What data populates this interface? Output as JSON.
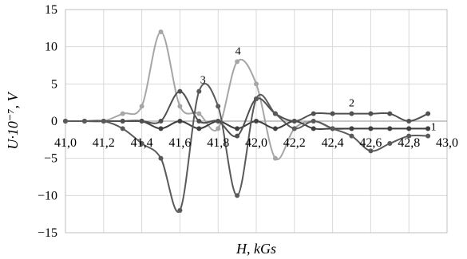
{
  "chart_data": {
    "type": "line",
    "title": "",
    "xlabel": "H, kGs",
    "ylabel": "U·10⁻⁷, V",
    "xlim": [
      41.0,
      43.0
    ],
    "ylim": [
      -15,
      15
    ],
    "x_ticks": [
      41.0,
      41.2,
      41.4,
      41.6,
      41.8,
      42.0,
      42.2,
      42.4,
      42.6,
      42.8,
      43.0
    ],
    "x_tick_labels": [
      "41,0",
      "41,2",
      "41,4",
      "41,6",
      "41,8",
      "42,0",
      "42,2",
      "42,4",
      "42,6",
      "42,8",
      "43,0"
    ],
    "y_ticks": [
      -15,
      -10,
      -5,
      0,
      5,
      10,
      15
    ],
    "y_tick_labels": [
      "−15",
      "−10",
      "−5",
      "0",
      "5",
      "10",
      "15"
    ],
    "grid": true,
    "legend": "none",
    "series": [
      {
        "name": "1",
        "color": "#404040",
        "x": [
          41.0,
          41.1,
          41.2,
          41.3,
          41.4,
          41.5,
          41.6,
          41.7,
          41.8,
          41.9,
          42.0,
          42.1,
          42.2,
          42.3,
          42.4,
          42.5,
          42.6,
          42.7,
          42.8,
          42.9
        ],
        "y": [
          0,
          0,
          0,
          0,
          0,
          -1,
          0,
          -1,
          0,
          -1,
          0,
          -1,
          0,
          -1,
          -1,
          -1,
          -1,
          -1,
          -1,
          -1
        ]
      },
      {
        "name": "2",
        "color": "#505050",
        "x": [
          41.0,
          41.1,
          41.2,
          41.3,
          41.4,
          41.5,
          41.6,
          41.7,
          41.8,
          41.9,
          42.0,
          42.1,
          42.2,
          42.3,
          42.4,
          42.5,
          42.6,
          42.7,
          42.8,
          42.9
        ],
        "y": [
          0,
          0,
          0,
          0,
          0,
          0,
          4,
          0,
          0,
          -2,
          3,
          1,
          0,
          1,
          1,
          1,
          1,
          1,
          0,
          1
        ]
      },
      {
        "name": "3",
        "color": "#5a5a5a",
        "x": [
          41.0,
          41.1,
          41.2,
          41.3,
          41.4,
          41.5,
          41.6,
          41.7,
          41.8,
          41.9,
          42.0,
          42.1,
          42.2,
          42.3,
          42.4,
          42.5,
          42.6,
          42.7,
          42.8,
          42.9
        ],
        "y": [
          0,
          0,
          0,
          -1,
          -3,
          -5,
          -12,
          4,
          2,
          -10,
          3,
          1,
          -1,
          0,
          -1,
          -2,
          -4,
          -3,
          -2,
          -2
        ]
      },
      {
        "name": "4",
        "color": "#a6a6a6",
        "x": [
          41.0,
          41.1,
          41.2,
          41.3,
          41.4,
          41.5,
          41.6,
          41.7,
          41.8,
          41.9,
          42.0,
          42.1,
          42.2,
          42.3,
          42.4,
          42.5,
          42.6,
          42.7,
          42.8,
          42.9
        ],
        "y": [
          0,
          0,
          0,
          1,
          2,
          12,
          2,
          1,
          -1,
          8,
          5,
          -5,
          -1,
          0,
          -1,
          -1,
          -1,
          -1,
          -1,
          -1
        ]
      }
    ]
  }
}
